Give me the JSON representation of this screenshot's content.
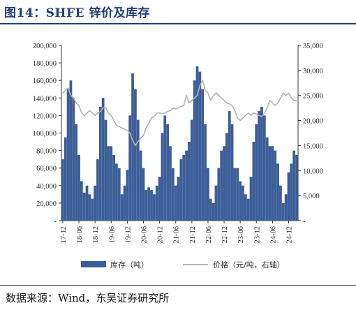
{
  "figure": {
    "title": "图14：SHFE 锌价及库存",
    "source": "数据来源：Wind，东吴证券研究所"
  },
  "chart_data": {
    "type": "bar+line",
    "title": "",
    "xlabel": "",
    "ylabel_left": "",
    "ylabel_right": "",
    "x_tick_labels": [
      "17-12",
      "18-06",
      "18-12",
      "19-06",
      "19-12",
      "20-06",
      "20-12",
      "21-06",
      "21-12",
      "22-06",
      "22-12",
      "23-06",
      "23-12",
      "24-06",
      "24-12"
    ],
    "left_axis": {
      "min": 0,
      "max": 200000,
      "ticks": [
        "-",
        "20,000",
        "40,000",
        "60,000",
        "80,000",
        "100,000",
        "120,000",
        "140,000",
        "160,000",
        "180,000",
        "200,000"
      ]
    },
    "right_axis": {
      "min": 0,
      "max": 35000,
      "ticks": [
        "-",
        "5,000",
        "10,000",
        "15,000",
        "20,000",
        "25,000",
        "30,000",
        "35,000"
      ]
    },
    "x_range_months": [
      "2017-12",
      "2025-03"
    ],
    "legend_position": "bottom",
    "colors": {
      "inventory": "#3b5e98",
      "price": "#b3b3b3"
    },
    "series": [
      {
        "name": "库存（吨）",
        "kind": "bar",
        "axis": "left",
        "points": [
          [
            "2017-12",
            70000
          ],
          [
            "2018-01",
            95000
          ],
          [
            "2018-02",
            150000
          ],
          [
            "2018-03",
            160000
          ],
          [
            "2018-04",
            140000
          ],
          [
            "2018-05",
            110000
          ],
          [
            "2018-06",
            75000
          ],
          [
            "2018-07",
            45000
          ],
          [
            "2018-08",
            32000
          ],
          [
            "2018-09",
            40000
          ],
          [
            "2018-10",
            30000
          ],
          [
            "2018-11",
            25000
          ],
          [
            "2018-12",
            40000
          ],
          [
            "2019-01",
            70000
          ],
          [
            "2019-02",
            130000
          ],
          [
            "2019-03",
            140000
          ],
          [
            "2019-04",
            115000
          ],
          [
            "2019-05",
            85000
          ],
          [
            "2019-06",
            85000
          ],
          [
            "2019-07",
            75000
          ],
          [
            "2019-08",
            65000
          ],
          [
            "2019-09",
            60000
          ],
          [
            "2019-10",
            30000
          ],
          [
            "2019-11",
            40000
          ],
          [
            "2019-12",
            58000
          ],
          [
            "2020-01",
            120000
          ],
          [
            "2020-02",
            168000
          ],
          [
            "2020-03",
            150000
          ],
          [
            "2020-04",
            115000
          ],
          [
            "2020-05",
            80000
          ],
          [
            "2020-06",
            60000
          ],
          [
            "2020-07",
            35000
          ],
          [
            "2020-08",
            38000
          ],
          [
            "2020-09",
            35000
          ],
          [
            "2020-10",
            30000
          ],
          [
            "2020-11",
            40000
          ],
          [
            "2020-12",
            50000
          ],
          [
            "2021-01",
            100000
          ],
          [
            "2021-02",
            120000
          ],
          [
            "2021-03",
            110000
          ],
          [
            "2021-04",
            85000
          ],
          [
            "2021-05",
            60000
          ],
          [
            "2021-06",
            40000
          ],
          [
            "2021-07",
            50000
          ],
          [
            "2021-08",
            70000
          ],
          [
            "2021-09",
            75000
          ],
          [
            "2021-10",
            80000
          ],
          [
            "2021-11",
            90000
          ],
          [
            "2021-12",
            115000
          ],
          [
            "2022-01",
            160000
          ],
          [
            "2022-02",
            176000
          ],
          [
            "2022-03",
            170000
          ],
          [
            "2022-04",
            150000
          ],
          [
            "2022-05",
            110000
          ],
          [
            "2022-06",
            60000
          ],
          [
            "2022-07",
            25000
          ],
          [
            "2022-08",
            20000
          ],
          [
            "2022-09",
            40000
          ],
          [
            "2022-10",
            60000
          ],
          [
            "2022-11",
            80000
          ],
          [
            "2022-12",
            85000
          ],
          [
            "2023-01",
            100000
          ],
          [
            "2023-02",
            125000
          ],
          [
            "2023-03",
            110000
          ],
          [
            "2023-04",
            60000
          ],
          [
            "2023-05",
            60000
          ],
          [
            "2023-06",
            45000
          ],
          [
            "2023-07",
            40000
          ],
          [
            "2023-08",
            30000
          ],
          [
            "2023-09",
            25000
          ],
          [
            "2023-10",
            50000
          ],
          [
            "2023-11",
            90000
          ],
          [
            "2023-12",
            110000
          ],
          [
            "2024-01",
            125000
          ],
          [
            "2024-02",
            130000
          ],
          [
            "2024-03",
            120000
          ],
          [
            "2024-04",
            95000
          ],
          [
            "2024-05",
            85000
          ],
          [
            "2024-06",
            85000
          ],
          [
            "2024-07",
            80000
          ],
          [
            "2024-08",
            65000
          ],
          [
            "2024-09",
            40000
          ],
          [
            "2024-10",
            20000
          ],
          [
            "2024-11",
            30000
          ],
          [
            "2024-12",
            55000
          ],
          [
            "2025-01",
            65000
          ],
          [
            "2025-02",
            80000
          ],
          [
            "2025-03",
            75000
          ]
        ]
      },
      {
        "name": "价格（元/吨，右轴）",
        "kind": "line",
        "axis": "right",
        "points": [
          [
            "2017-12",
            25500
          ],
          [
            "2018-01",
            26000
          ],
          [
            "2018-02",
            26500
          ],
          [
            "2018-03",
            25000
          ],
          [
            "2018-04",
            24500
          ],
          [
            "2018-05",
            23500
          ],
          [
            "2018-06",
            23000
          ],
          [
            "2018-07",
            21500
          ],
          [
            "2018-08",
            21000
          ],
          [
            "2018-09",
            21500
          ],
          [
            "2018-10",
            22000
          ],
          [
            "2018-11",
            21500
          ],
          [
            "2018-12",
            21000
          ],
          [
            "2019-01",
            21500
          ],
          [
            "2019-02",
            21800
          ],
          [
            "2019-03",
            22500
          ],
          [
            "2019-04",
            22500
          ],
          [
            "2019-05",
            21500
          ],
          [
            "2019-06",
            21000
          ],
          [
            "2019-07",
            20000
          ],
          [
            "2019-08",
            19000
          ],
          [
            "2019-09",
            18800
          ],
          [
            "2019-10",
            18500
          ],
          [
            "2019-11",
            18300
          ],
          [
            "2019-12",
            18000
          ],
          [
            "2020-01",
            17500
          ],
          [
            "2020-02",
            16000
          ],
          [
            "2020-03",
            15000
          ],
          [
            "2020-04",
            15800
          ],
          [
            "2020-05",
            16500
          ],
          [
            "2020-06",
            17000
          ],
          [
            "2020-07",
            18500
          ],
          [
            "2020-08",
            19500
          ],
          [
            "2020-09",
            20500
          ],
          [
            "2020-10",
            20800
          ],
          [
            "2020-11",
            21500
          ],
          [
            "2020-12",
            21500
          ],
          [
            "2021-01",
            21300
          ],
          [
            "2021-02",
            21500
          ],
          [
            "2021-03",
            21800
          ],
          [
            "2021-04",
            22000
          ],
          [
            "2021-05",
            22500
          ],
          [
            "2021-06",
            22300
          ],
          [
            "2021-07",
            22500
          ],
          [
            "2021-08",
            22800
          ],
          [
            "2021-09",
            23000
          ],
          [
            "2021-10",
            25000
          ],
          [
            "2021-11",
            23500
          ],
          [
            "2021-12",
            24000
          ],
          [
            "2022-01",
            24500
          ],
          [
            "2022-02",
            25000
          ],
          [
            "2022-03",
            27000
          ],
          [
            "2022-04",
            28000
          ],
          [
            "2022-05",
            26000
          ],
          [
            "2022-06",
            25500
          ],
          [
            "2022-07",
            24000
          ],
          [
            "2022-08",
            25000
          ],
          [
            "2022-09",
            25500
          ],
          [
            "2022-10",
            25000
          ],
          [
            "2022-11",
            24500
          ],
          [
            "2022-12",
            24000
          ],
          [
            "2023-01",
            23500
          ],
          [
            "2023-02",
            23300
          ],
          [
            "2023-03",
            23000
          ],
          [
            "2023-04",
            22000
          ],
          [
            "2023-05",
            20500
          ],
          [
            "2023-06",
            20000
          ],
          [
            "2023-07",
            20500
          ],
          [
            "2023-08",
            21000
          ],
          [
            "2023-09",
            21500
          ],
          [
            "2023-10",
            21000
          ],
          [
            "2023-11",
            21500
          ],
          [
            "2023-12",
            21300
          ],
          [
            "2024-01",
            21000
          ],
          [
            "2024-02",
            20800
          ],
          [
            "2024-03",
            21500
          ],
          [
            "2024-04",
            22500
          ],
          [
            "2024-05",
            24000
          ],
          [
            "2024-06",
            23500
          ],
          [
            "2024-07",
            23000
          ],
          [
            "2024-08",
            23500
          ],
          [
            "2024-09",
            24500
          ],
          [
            "2024-10",
            25500
          ],
          [
            "2024-11",
            25000
          ],
          [
            "2024-12",
            25500
          ],
          [
            "2025-01",
            24500
          ],
          [
            "2025-02",
            24000
          ],
          [
            "2025-03",
            24000
          ]
        ]
      }
    ]
  }
}
